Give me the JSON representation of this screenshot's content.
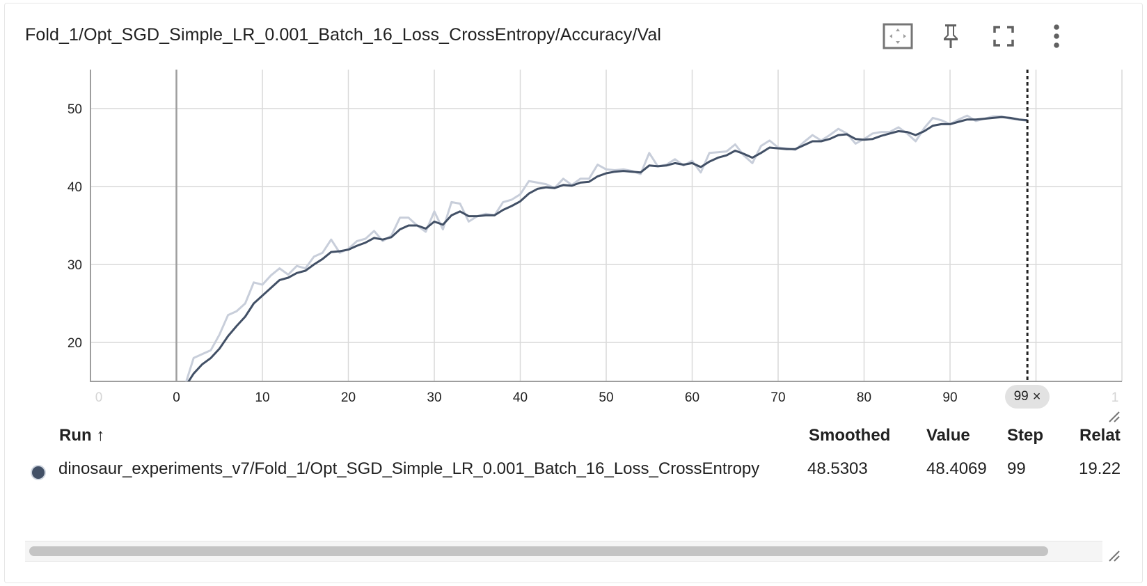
{
  "card": {
    "title": "Fold_1/Opt_SGD_Simple_LR_0.001_Batch_16_Loss_CrossEntropy/Accuracy/Val"
  },
  "toolbar": {
    "icons": [
      "fit-domain-icon",
      "pin-icon",
      "fullscreen-icon",
      "more-vert-icon"
    ]
  },
  "chart_data": {
    "type": "line",
    "title": "Fold_1/Opt_SGD_Simple_LR_0.001_Batch_16_Loss_CrossEntropy/Accuracy/Val",
    "xlabel": "",
    "ylabel": "",
    "xlim": [
      -10,
      110
    ],
    "ylim": [
      15,
      55
    ],
    "x_ticks": [
      0,
      10,
      20,
      30,
      40,
      50,
      60,
      70,
      80,
      90
    ],
    "x_ticks_faded": [
      "0",
      "1"
    ],
    "y_ticks": [
      20,
      30,
      40,
      50
    ],
    "grid": true,
    "cursor_step": 99,
    "colors": {
      "smoothed": "#425066",
      "raw": "#c8ceda",
      "grid": "#d9d9d9",
      "axis": "#9e9e9e"
    },
    "series": [
      {
        "kind": "raw",
        "x": [
          0,
          1,
          2,
          3,
          4,
          5,
          6,
          7,
          8,
          9,
          10,
          11,
          12,
          13,
          14,
          15,
          16,
          17,
          18,
          19,
          20,
          21,
          22,
          23,
          24,
          25,
          26,
          27,
          28,
          29,
          30,
          31,
          32,
          33,
          34,
          35,
          36,
          37,
          38,
          39,
          40,
          41,
          42,
          43,
          44,
          45,
          46,
          47,
          48,
          49,
          50,
          51,
          52,
          53,
          54,
          55,
          56,
          57,
          58,
          59,
          60,
          61,
          62,
          63,
          64,
          65,
          66,
          67,
          68,
          69,
          70,
          71,
          72,
          73,
          74,
          75,
          76,
          77,
          78,
          79,
          80,
          81,
          82,
          83,
          84,
          85,
          86,
          87,
          88,
          89,
          90,
          91,
          92,
          93,
          94,
          95,
          96,
          97,
          98,
          99
        ],
        "y": [
          10.5,
          14.5,
          18.0,
          18.5,
          19.0,
          21.0,
          23.5,
          24.0,
          25.0,
          27.7,
          27.4,
          28.6,
          29.5,
          28.7,
          29.8,
          29.5,
          31.0,
          31.5,
          33.2,
          31.5,
          32.0,
          33.0,
          33.3,
          34.3,
          33.0,
          33.7,
          36.0,
          36.0,
          35.0,
          34.2,
          36.8,
          34.5,
          38.0,
          37.8,
          35.5,
          36.2,
          36.5,
          36.3,
          38.0,
          38.3,
          39.0,
          40.7,
          40.5,
          40.3,
          39.8,
          41.0,
          40.2,
          41.0,
          41.0,
          42.8,
          42.2,
          42.1,
          42.2,
          42.0,
          41.6,
          44.3,
          42.6,
          42.8,
          43.5,
          42.7,
          43.3,
          41.8,
          44.3,
          44.4,
          44.5,
          45.4,
          44.0,
          43.0,
          45.2,
          45.9,
          45.0,
          44.9,
          44.7,
          45.7,
          46.6,
          45.9,
          46.6,
          47.4,
          46.8,
          45.5,
          46.1,
          46.8,
          47.0,
          47.0,
          47.6,
          46.8,
          45.8,
          47.5,
          48.8,
          48.5,
          48.0,
          48.6,
          49.1,
          48.4,
          48.7,
          49.0,
          49.0,
          48.7,
          48.6,
          48.4
        ]
      },
      {
        "kind": "smoothed",
        "x": [
          1,
          2,
          3,
          4,
          5,
          6,
          7,
          8,
          9,
          10,
          11,
          12,
          13,
          14,
          15,
          16,
          17,
          18,
          19,
          20,
          21,
          22,
          23,
          24,
          25,
          26,
          27,
          28,
          29,
          30,
          31,
          32,
          33,
          34,
          35,
          36,
          37,
          38,
          39,
          40,
          41,
          42,
          43,
          44,
          45,
          46,
          47,
          48,
          49,
          50,
          51,
          52,
          53,
          54,
          55,
          56,
          57,
          58,
          59,
          60,
          61,
          62,
          63,
          64,
          65,
          66,
          67,
          68,
          69,
          70,
          71,
          72,
          73,
          74,
          75,
          76,
          77,
          78,
          79,
          80,
          81,
          82,
          83,
          84,
          85,
          86,
          87,
          88,
          89,
          90,
          91,
          92,
          93,
          94,
          95,
          96,
          97,
          98,
          99
        ],
        "y": [
          14.3,
          16.0,
          17.2,
          18.0,
          19.2,
          20.8,
          22.1,
          23.3,
          25.0,
          26.0,
          27.0,
          28.0,
          28.3,
          28.9,
          29.2,
          30.0,
          30.7,
          31.6,
          31.7,
          31.9,
          32.4,
          32.8,
          33.4,
          33.2,
          33.5,
          34.5,
          35.0,
          35.0,
          34.6,
          35.5,
          35.1,
          36.3,
          36.8,
          36.2,
          36.2,
          36.3,
          36.3,
          37.0,
          37.5,
          38.1,
          39.1,
          39.7,
          39.9,
          39.8,
          40.2,
          40.1,
          40.5,
          40.6,
          41.3,
          41.7,
          41.9,
          42.0,
          41.9,
          41.8,
          42.7,
          42.6,
          42.7,
          43.0,
          42.8,
          43.0,
          42.5,
          43.2,
          43.7,
          44.0,
          44.6,
          44.2,
          43.7,
          44.3,
          45.0,
          44.9,
          44.8,
          44.8,
          45.3,
          45.8,
          45.8,
          46.1,
          46.6,
          46.7,
          46.1,
          46.0,
          46.1,
          46.5,
          46.8,
          47.1,
          47.0,
          46.6,
          47.1,
          47.8,
          48.0,
          48.0,
          48.3,
          48.6,
          48.6,
          48.7,
          48.8,
          48.9,
          48.8,
          48.6,
          48.5
        ]
      }
    ]
  },
  "table": {
    "headers": {
      "run": "Run ↑",
      "smoothed": "Smoothed",
      "value": "Value",
      "step": "Step",
      "relative": "Relat"
    },
    "rows": [
      {
        "run": "dinosaur_experiments_v7/Fold_1/Opt_SGD_Simple_LR_0.001_Batch_16_Loss_CrossEntropy",
        "smoothed": "48.5303",
        "value": "48.4069",
        "step": "99",
        "relative": "19.22",
        "color": "#425066"
      }
    ]
  },
  "badge": {
    "step": "99",
    "close": "×"
  }
}
